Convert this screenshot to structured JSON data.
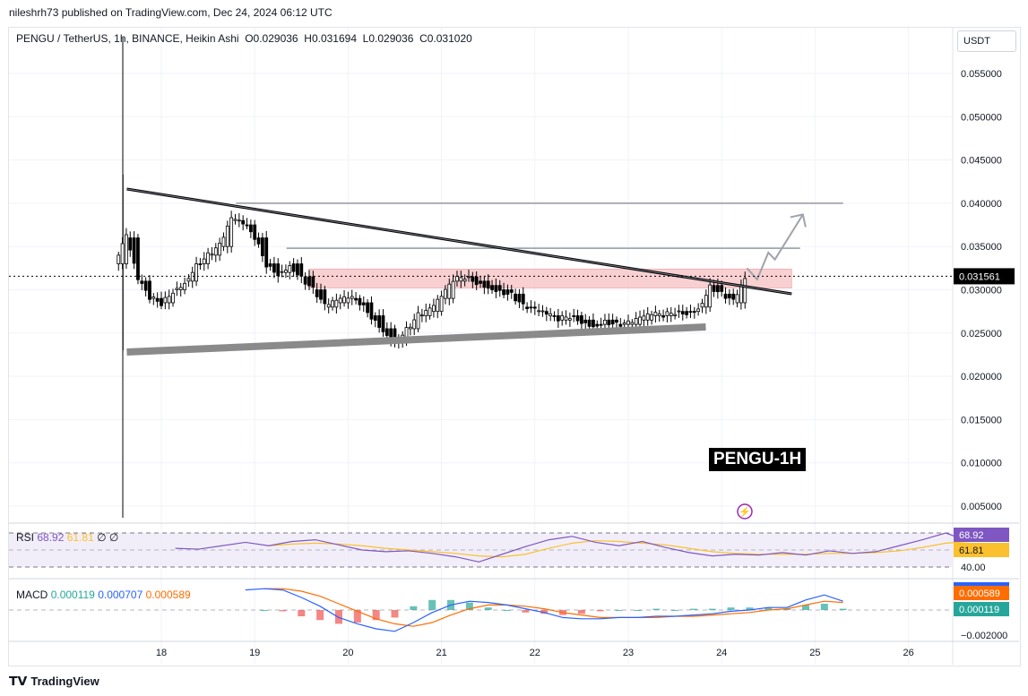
{
  "publisher": "nileshrh73 published on TradingView.com, Dec 24, 2024 06:12 UTC",
  "brand": "TradingView",
  "unit_button": "USDT",
  "annotation_label": "PENGU-1H",
  "chart_data": {
    "type": "candlestick",
    "title": "PENGU / TetherUS, 1h, BINANCE, Heikin Ashi",
    "ohlc_readout": {
      "open": "O0.029036",
      "high": "H0.031694",
      "low": "L0.029036",
      "close": "C0.031020"
    },
    "last_price": "0.031561",
    "y_ticks": [
      "0.055000",
      "0.050000",
      "0.045000",
      "0.040000",
      "0.035000",
      "0.030000",
      "0.025000",
      "0.020000",
      "0.015000",
      "0.010000",
      "0.005000"
    ],
    "x_ticks": [
      "18",
      "19",
      "20",
      "21",
      "22",
      "23",
      "24",
      "25",
      "26"
    ],
    "ylim": [
      0.005,
      0.055
    ],
    "xlim_days": [
      17.0,
      26.5
    ],
    "closes": {
      "start_day": 17.625,
      "step_day": 0.125,
      "values": [
        0.036,
        0.031,
        0.029,
        0.0285,
        0.03,
        0.031,
        0.033,
        0.034,
        0.035,
        0.038,
        0.0375,
        0.036,
        0.033,
        0.032,
        0.033,
        0.0315,
        0.03,
        0.028,
        0.0285,
        0.029,
        0.0285,
        0.027,
        0.0255,
        0.024,
        0.0255,
        0.027,
        0.0275,
        0.029,
        0.031,
        0.0315,
        0.031,
        0.0305,
        0.03,
        0.0295,
        0.028,
        0.0275,
        0.027,
        0.0265,
        0.027,
        0.0265,
        0.026,
        0.0265,
        0.026,
        0.026,
        0.0265,
        0.027,
        0.027,
        0.0275,
        0.0275,
        0.028,
        0.0305,
        0.0295,
        0.0285,
        0.031
      ]
    },
    "first_candle": {
      "day": 17.59,
      "low": 0.023,
      "high": 0.0433
    },
    "drawings": {
      "resistance_trendline": [
        [
          17.63,
          0.04165
        ],
        [
          24.75,
          0.02953
        ]
      ],
      "support_trendline": [
        [
          17.63,
          0.0228
        ],
        [
          23.83,
          0.0257
        ]
      ],
      "horizontal_lines": [
        {
          "price": 0.04,
          "from": 18.8,
          "to": 25.3
        },
        {
          "price": 0.0348,
          "from": 19.34,
          "to": 24.84
        }
      ],
      "zone": {
        "top": 0.0324,
        "bottom": 0.0302,
        "from": 19.58,
        "to": 24.75,
        "color": "#f7c5c8"
      },
      "projection_arrow": [
        [
          24.27,
          0.0325
        ],
        [
          24.38,
          0.0312
        ],
        [
          24.5,
          0.0343
        ],
        [
          24.57,
          0.0335
        ],
        [
          24.87,
          0.0387
        ]
      ]
    },
    "rsi": {
      "label": "RSI",
      "value": "68.92",
      "ma_value": "61.81",
      "extra": [
        "∅",
        "∅"
      ],
      "level_label": "40.00",
      "levels": [
        70,
        50,
        30
      ],
      "start_day": 18.15,
      "step_day": 0.25,
      "values": [
        52,
        51,
        55,
        59,
        55,
        60,
        62,
        56,
        50,
        48,
        49,
        46,
        42,
        36,
        45,
        54,
        62,
        66,
        59,
        55,
        60,
        53,
        47,
        43,
        45,
        44,
        47,
        44,
        49,
        46,
        48,
        55,
        62,
        70,
        60,
        68
      ],
      "ma": [
        null,
        null,
        null,
        null,
        55,
        57,
        58,
        57,
        55,
        52,
        50,
        48,
        46,
        43,
        42,
        45,
        52,
        58,
        61,
        60,
        58,
        56,
        52,
        48,
        46,
        45,
        45,
        45,
        46,
        46,
        47,
        49,
        53,
        58,
        60,
        62
      ],
      "colors": {
        "rsi": "#7e57c2",
        "ma": "#fbc02d"
      }
    },
    "macd": {
      "label": "MACD",
      "hist_value": "0.000119",
      "macd_value": "0.000707",
      "signal_value": "0.000589",
      "tick_label": "−0.002000",
      "start_day": 18.9,
      "step_day": 0.2,
      "macd_line": [
        0.0016,
        0.0017,
        0.0016,
        0.001,
        0.0003,
        -0.0006,
        -0.0011,
        -0.0015,
        -0.0017,
        -0.001,
        -0.0002,
        0.0004,
        0.0007,
        0.0006,
        0.0004,
        0.0001,
        -0.0002,
        -0.0006,
        -0.0007,
        -0.0007,
        -0.0006,
        -0.0006,
        -0.0005,
        -0.0005,
        -0.0004,
        -0.0003,
        -0.0001,
        0.0,
        0.0002,
        0.0002,
        0.0008,
        0.0012,
        0.0007
      ],
      "signal_line": [
        null,
        0.0017,
        0.0017,
        0.0015,
        0.0011,
        0.0005,
        -0.0001,
        -0.0007,
        -0.0011,
        -0.0013,
        -0.001,
        -0.0004,
        0.0001,
        0.0004,
        0.0004,
        0.0003,
        0.0001,
        -0.0002,
        -0.0004,
        -0.0006,
        -0.0006,
        -0.0006,
        -0.0006,
        -0.0005,
        -0.0005,
        -0.0004,
        -0.0003,
        -0.0002,
        -0.0,
        0.0001,
        0.0004,
        0.0007,
        0.0006
      ],
      "colors": {
        "macd": "#2962ff",
        "signal": "#ff6d00",
        "hist_up": "#26a69a",
        "hist_down": "#ef5350"
      }
    }
  }
}
